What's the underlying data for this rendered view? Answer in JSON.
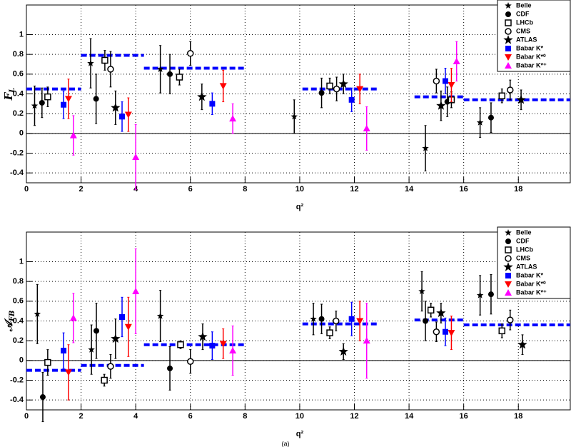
{
  "caption": "(a)",
  "chart_data": [
    {
      "type": "scatter",
      "ylabel": "F",
      "ylabel_sub": "L",
      "xlabel": "q²",
      "xlim": [
        0,
        19.9
      ],
      "ylim": [
        -0.5,
        1.3
      ],
      "xticks": [
        0,
        2,
        4,
        6,
        8,
        10,
        12,
        14,
        16,
        18
      ],
      "yticks": [
        -0.4,
        -0.2,
        0,
        0.2,
        0.4,
        0.6,
        0.8,
        1
      ],
      "grid": true,
      "zero_line": true,
      "legend": "upper right",
      "series": [
        {
          "name": "Belle",
          "marker": "star-small",
          "color": "#000000",
          "x": [
            0.3,
            2.35,
            4.9,
            9.8,
            14.6,
            16.6
          ],
          "values": [
            0.28,
            0.71,
            0.65,
            0.17,
            -0.15,
            0.11
          ],
          "errors": [
            0.2,
            0.25,
            0.24,
            0.17,
            0.23,
            0.15
          ]
        },
        {
          "name": "CDF",
          "marker": "circle-filled",
          "color": "#000000",
          "x": [
            0.57,
            2.55,
            5.25,
            10.8,
            15.4,
            17.0
          ],
          "values": [
            0.31,
            0.35,
            0.6,
            0.41,
            0.32,
            0.16
          ],
          "errors": [
            0.15,
            0.25,
            0.2,
            0.15,
            0.15,
            0.15
          ]
        },
        {
          "name": "LHCb",
          "marker": "square-open",
          "color": "#000000",
          "x": [
            0.78,
            2.87,
            5.6,
            11.1,
            15.55,
            17.4
          ],
          "values": [
            0.37,
            0.74,
            0.57,
            0.48,
            0.34,
            0.38
          ],
          "errors": [
            0.1,
            0.1,
            0.08,
            0.08,
            0.08,
            0.07
          ]
        },
        {
          "name": "CMS",
          "marker": "circle-open",
          "color": "#000000",
          "x": [
            3.08,
            6.0,
            11.35,
            15.0,
            17.7
          ],
          "values": [
            0.65,
            0.81,
            0.45,
            0.53,
            0.44
          ],
          "errors": [
            0.18,
            0.12,
            0.12,
            0.12,
            0.1
          ]
        },
        {
          "name": "ATLAS",
          "marker": "star-large",
          "color": "#000000",
          "x": [
            3.26,
            6.42,
            11.6,
            15.17,
            18.1
          ],
          "values": [
            0.26,
            0.37,
            0.5,
            0.28,
            0.34
          ],
          "errors": [
            0.17,
            0.13,
            0.1,
            0.15,
            0.1
          ]
        },
        {
          "name": "Babar K*",
          "marker": "square-filled",
          "color": "#0000ff",
          "x": [
            1.36,
            3.5,
            6.8,
            11.9,
            15.33
          ],
          "values": [
            0.29,
            0.17,
            0.3,
            0.34,
            0.53
          ],
          "errors": [
            0.14,
            0.15,
            0.11,
            0.12,
            0.13
          ]
        },
        {
          "name": "Babar K*⁰",
          "marker": "triangle-down",
          "color": "#ff0000",
          "x": [
            1.54,
            3.73,
            7.2,
            12.2,
            15.55
          ],
          "values": [
            0.35,
            0.19,
            0.48,
            0.45,
            0.49
          ],
          "errors": [
            0.2,
            0.17,
            0.16,
            0.15,
            0.17
          ]
        },
        {
          "name": "Babar K*⁺",
          "marker": "triangle-up",
          "color": "#ff00ff",
          "x": [
            1.72,
            4.0,
            7.55,
            12.45,
            15.74
          ],
          "values": [
            -0.02,
            -0.24,
            0.15,
            0.05,
            0.73
          ],
          "errors": [
            0.2,
            0.33,
            0.15,
            0.22,
            0.2
          ]
        }
      ],
      "theory": {
        "color": "#0000ff",
        "bins": [
          [
            0,
            2
          ],
          [
            2,
            4.3
          ],
          [
            4.3,
            8
          ],
          [
            10.1,
            12.9
          ],
          [
            14.2,
            16
          ],
          [
            16,
            19.9
          ]
        ],
        "values": [
          0.45,
          0.79,
          0.66,
          0.45,
          0.37,
          0.34
        ]
      }
    },
    {
      "type": "scatter",
      "ylabel": "𝒜",
      "ylabel_sub": "FB",
      "xlabel": "q²",
      "xlim": [
        0,
        19.9
      ],
      "ylim": [
        -0.5,
        1.3
      ],
      "xticks": [
        0,
        2,
        4,
        6,
        8,
        10,
        12,
        14,
        16,
        18
      ],
      "yticks": [
        -0.4,
        -0.2,
        0,
        0.2,
        0.4,
        0.6,
        0.8,
        1
      ],
      "grid": true,
      "zero_line": true,
      "legend": "upper right",
      "series": [
        {
          "name": "Belle",
          "marker": "star-small",
          "color": "#000000",
          "x": [
            0.4,
            2.38,
            4.9,
            10.5,
            14.47,
            16.6
          ],
          "values": [
            0.47,
            0.11,
            0.45,
            0.42,
            0.7,
            0.66
          ],
          "errors": [
            0.3,
            0.25,
            0.26,
            0.16,
            0.2,
            0.2
          ]
        },
        {
          "name": "CDF",
          "marker": "circle-filled",
          "color": "#000000",
          "x": [
            0.6,
            2.56,
            5.25,
            10.8,
            14.6,
            17.0
          ],
          "values": [
            -0.37,
            0.3,
            -0.08,
            0.42,
            0.4,
            0.67
          ],
          "errors": [
            0.25,
            0.28,
            0.22,
            0.15,
            0.2,
            0.2
          ]
        },
        {
          "name": "LHCb",
          "marker": "square-open",
          "color": "#000000",
          "x": [
            0.78,
            2.85,
            5.64,
            11.1,
            14.8,
            17.4
          ],
          "values": [
            -0.02,
            -0.2,
            0.16,
            0.28,
            0.51,
            0.3
          ],
          "errors": [
            0.13,
            0.06,
            0.04,
            0.06,
            0.07,
            0.07
          ]
        },
        {
          "name": "CMS",
          "marker": "circle-open",
          "color": "#000000",
          "x": [
            3.08,
            6.0,
            11.33,
            15.0,
            17.7
          ],
          "values": [
            -0.06,
            -0.01,
            0.4,
            0.29,
            0.41
          ],
          "errors": [
            0.12,
            0.12,
            0.1,
            0.1,
            0.1
          ]
        },
        {
          "name": "ATLAS",
          "marker": "star-large",
          "color": "#000000",
          "x": [
            3.26,
            6.45,
            11.6,
            15.17,
            18.15
          ],
          "values": [
            0.22,
            0.24,
            0.09,
            0.48,
            0.16
          ],
          "errors": [
            0.2,
            0.13,
            0.08,
            0.1,
            0.1
          ]
        },
        {
          "name": "Babar K*",
          "marker": "square-filled",
          "color": "#0000ff",
          "x": [
            1.36,
            3.5,
            6.8,
            11.9,
            15.33
          ],
          "values": [
            0.1,
            0.44,
            0.15,
            0.42,
            0.29
          ],
          "errors": [
            0.18,
            0.2,
            0.14,
            0.17,
            0.14
          ]
        },
        {
          "name": "Babar K*⁰",
          "marker": "triangle-down",
          "color": "#ff0000",
          "x": [
            1.54,
            3.73,
            7.2,
            12.2,
            15.55
          ],
          "values": [
            -0.12,
            0.34,
            0.17,
            0.4,
            0.28
          ],
          "errors": [
            0.28,
            0.3,
            0.15,
            0.2,
            0.17
          ]
        },
        {
          "name": "Babar K*⁺",
          "marker": "triangle-up",
          "color": "#ff00ff",
          "x": [
            1.72,
            4.0,
            7.55,
            12.45
          ],
          "values": [
            0.43,
            0.7,
            0.1,
            0.2
          ],
          "errors": [
            0.25,
            0.43,
            0.25,
            0.38
          ]
        }
      ],
      "theory": {
        "color": "#0000ff",
        "bins": [
          [
            0,
            2
          ],
          [
            2,
            4.3
          ],
          [
            4.3,
            8
          ],
          [
            10.1,
            12.9
          ],
          [
            14.2,
            16
          ],
          [
            16,
            19.9
          ]
        ],
        "values": [
          -0.1,
          -0.05,
          0.16,
          0.37,
          0.41,
          0.36
        ]
      }
    }
  ]
}
